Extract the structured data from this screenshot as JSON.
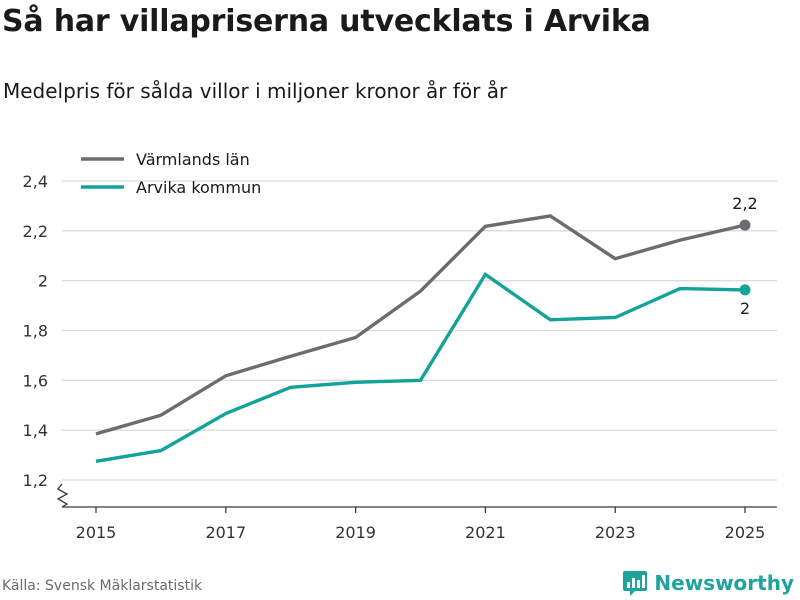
{
  "header": {
    "title": "Så har villapriserna utvecklats i Arvika",
    "subtitle": "Medelpris för sålda villor i miljoner kronor år för år"
  },
  "footer": {
    "source": "Källa: Svensk Mäklarstatistik",
    "brand": "Newsworthy"
  },
  "icons": {
    "brand_logo": "bar-chart-speech-bubble-icon",
    "axis_break": "zigzag-axis-break-icon"
  },
  "chart_data": {
    "type": "line",
    "title": "Så har villapriserna utvecklats i Arvika",
    "subtitle": "Medelpris för sålda villor i miljoner kronor år för år",
    "xlabel": "",
    "ylabel": "",
    "x": [
      2015,
      2016,
      2017,
      2018,
      2019,
      2020,
      2021,
      2022,
      2023,
      2024,
      2025
    ],
    "xticks": [
      2015,
      2017,
      2019,
      2021,
      2023,
      2025
    ],
    "xtick_labels": [
      "2015",
      "2017",
      "2019",
      "2021",
      "2023",
      "2025"
    ],
    "xlim": [
      2015,
      2025
    ],
    "ylim": [
      1.2,
      2.4
    ],
    "yticks": [
      1.2,
      1.4,
      1.6,
      1.8,
      2.0,
      2.2,
      2.4
    ],
    "ytick_labels": [
      "1,2",
      "1,4",
      "1,6",
      "1,8",
      "2",
      "2,2",
      "2,4"
    ],
    "grid": true,
    "axis_break": true,
    "legend_position": "top-left",
    "series": [
      {
        "name": "Värmlands län",
        "color": "#6d6b70",
        "values": [
          1.385,
          1.46,
          1.618,
          1.697,
          1.772,
          1.958,
          2.218,
          2.26,
          2.088,
          2.163,
          2.223
        ],
        "end_label": "2,2",
        "end_label_position": "above"
      },
      {
        "name": "Arvika kommun",
        "color": "#13a398",
        "values": [
          1.275,
          1.318,
          1.467,
          1.572,
          1.592,
          1.6,
          2.025,
          1.843,
          1.852,
          1.968,
          1.963
        ],
        "end_label": "2",
        "end_label_position": "below"
      }
    ]
  }
}
